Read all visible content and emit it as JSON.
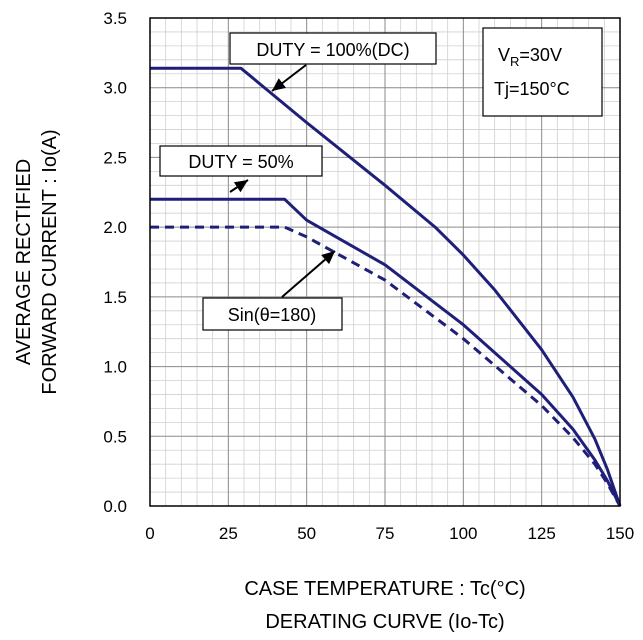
{
  "chart_data": {
    "type": "line",
    "xlabel": "CASE TEMPERATURE : Tc(°C)",
    "caption": "DERATING CURVE (Io-Tc)",
    "ylabel_line1": "AVERAGE RECTIFIED",
    "ylabel_line2": "FORWARD CURRENT : Io(A)",
    "xlim": [
      0,
      150
    ],
    "ylim": [
      0,
      3.5
    ],
    "x_ticks": [
      "0",
      "25",
      "50",
      "75",
      "100",
      "125",
      "150"
    ],
    "y_ticks": [
      "0.0",
      "0.5",
      "1.0",
      "1.5",
      "2.0",
      "2.5",
      "3.0",
      "3.5"
    ],
    "grid": true,
    "conditions": {
      "vr_symbol": "V",
      "vr_subscript": "R",
      "vr_value": "=30V",
      "tj": "Tj=150°C"
    },
    "series": [
      {
        "name": "DUTY = 100%(DC)",
        "style": "solid",
        "x": [
          0,
          29,
          50,
          75,
          91,
          100,
          110,
          125,
          135,
          142,
          146,
          150
        ],
        "y": [
          3.14,
          3.14,
          2.75,
          2.3,
          2.0,
          1.8,
          1.55,
          1.12,
          0.78,
          0.48,
          0.26,
          0
        ]
      },
      {
        "name": "DUTY = 50%",
        "style": "solid",
        "x": [
          0,
          43,
          50,
          75,
          100,
          125,
          135,
          142,
          146,
          150
        ],
        "y": [
          2.2,
          2.2,
          2.05,
          1.73,
          1.3,
          0.8,
          0.55,
          0.33,
          0.18,
          0
        ]
      },
      {
        "name": "Sin(θ=180)",
        "style": "dashed",
        "x": [
          0,
          43,
          50,
          75,
          100,
          125,
          135,
          142,
          146,
          150
        ],
        "y": [
          2.0,
          2.0,
          1.93,
          1.62,
          1.2,
          0.72,
          0.49,
          0.3,
          0.16,
          0
        ]
      }
    ]
  },
  "colors": {
    "curve": "#1f1f7a",
    "major_grid": "#8a8a8a",
    "minor_grid": "#d0d0d0"
  }
}
